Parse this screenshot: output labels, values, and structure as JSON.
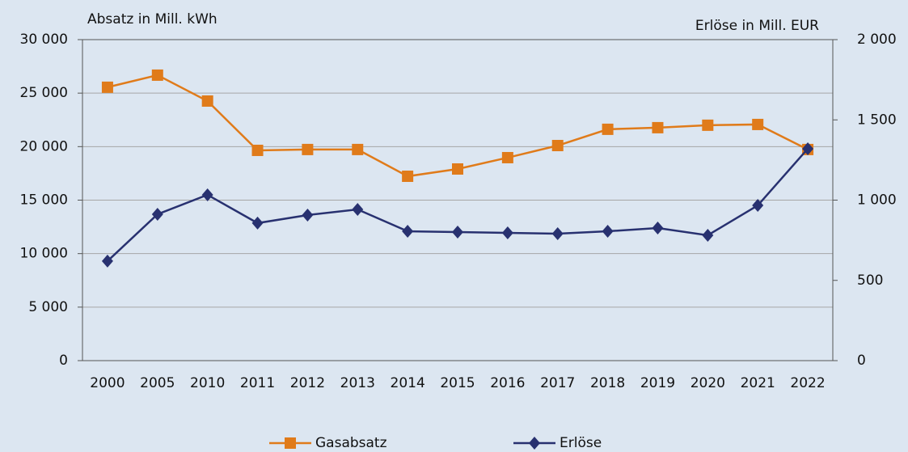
{
  "chart_data": {
    "type": "line",
    "y_label": "Absatz in Mill. kWh",
    "y2_label": "Erlöse in Mill. EUR",
    "categories": [
      "2000",
      "2005",
      "2010",
      "2011",
      "2012",
      "2013",
      "2014",
      "2015",
      "2016",
      "2017",
      "2018",
      "2019",
      "2020",
      "2021",
      "2022"
    ],
    "series": [
      {
        "name": "Gasabsatz",
        "color": "#e07b1a",
        "marker": "square",
        "axis": "y",
        "values": [
          25550,
          26680,
          24260,
          19650,
          19730,
          19730,
          17230,
          17910,
          18970,
          20100,
          21620,
          21770,
          22000,
          22070,
          19730
        ]
      },
      {
        "name": "Erlöse",
        "color": "#283170",
        "marker": "diamond",
        "axis": "y2",
        "values": [
          620,
          912,
          1033,
          857,
          907,
          942,
          806,
          801,
          796,
          791,
          806,
          826,
          781,
          967,
          1320
        ]
      }
    ],
    "ylim": [
      0,
      30000
    ],
    "yticks": [
      0,
      {
        "value": 5000,
        "label": "5 000"
      },
      {
        "value": 10000,
        "label": "10 000"
      },
      {
        "value": 15000,
        "label": "15 000"
      },
      {
        "value": 20000,
        "label": "20 000"
      },
      {
        "value": 25000,
        "label": "25 000"
      },
      {
        "value": 30000,
        "label": "30 000"
      }
    ],
    "y2lim": [
      0,
      2000
    ],
    "y2ticks": [
      0,
      500,
      {
        "value": 1000,
        "label": "1 000"
      },
      {
        "value": 1500,
        "label": "1 500"
      },
      {
        "value": 2000,
        "label": "2 000"
      }
    ],
    "grid": true
  }
}
